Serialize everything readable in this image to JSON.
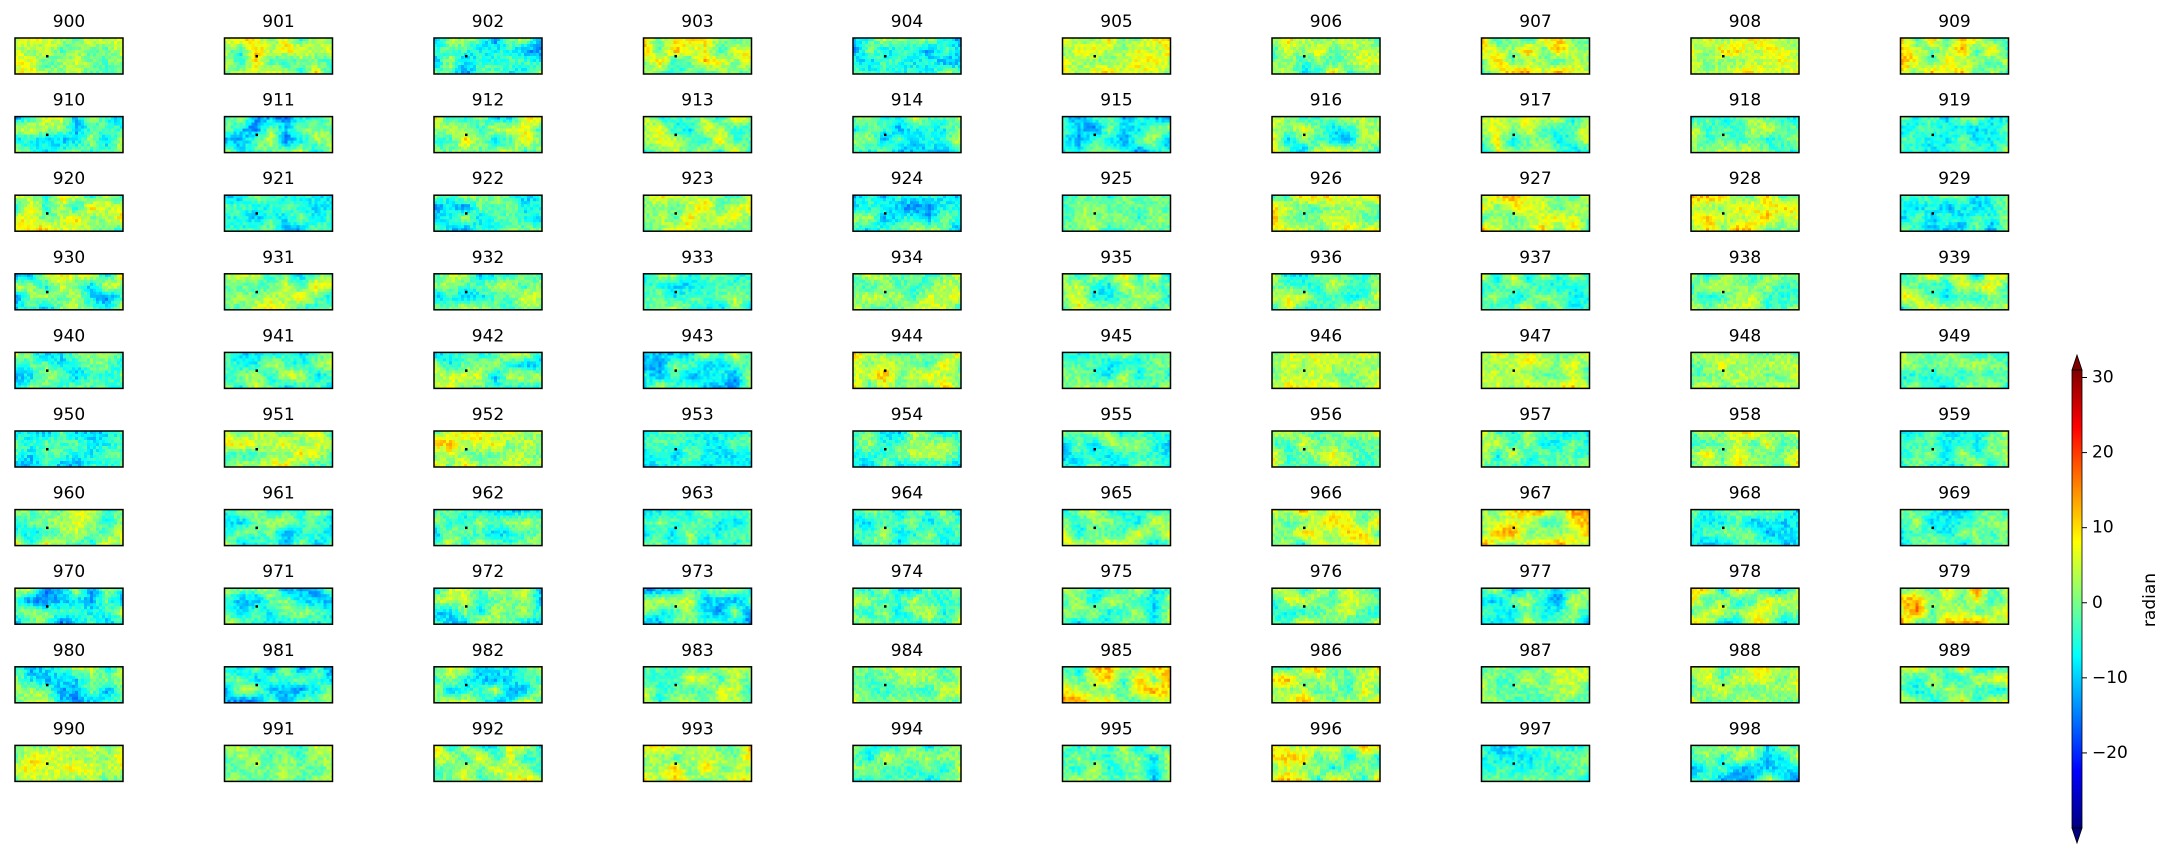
{
  "chart_data": {
    "type": "image-grid",
    "panels": [
      "900",
      "901",
      "902",
      "903",
      "904",
      "905",
      "906",
      "907",
      "908",
      "909",
      "910",
      "911",
      "912",
      "913",
      "914",
      "915",
      "916",
      "917",
      "918",
      "919",
      "920",
      "921",
      "922",
      "923",
      "924",
      "925",
      "926",
      "927",
      "928",
      "929",
      "930",
      "931",
      "932",
      "933",
      "934",
      "935",
      "936",
      "937",
      "938",
      "939",
      "940",
      "941",
      "942",
      "943",
      "944",
      "945",
      "946",
      "947",
      "948",
      "949",
      "950",
      "951",
      "952",
      "953",
      "954",
      "955",
      "956",
      "957",
      "958",
      "959",
      "960",
      "961",
      "962",
      "963",
      "964",
      "965",
      "966",
      "967",
      "968",
      "969",
      "970",
      "971",
      "972",
      "973",
      "974",
      "975",
      "976",
      "977",
      "978",
      "979",
      "980",
      "981",
      "982",
      "983",
      "984",
      "985",
      "986",
      "987",
      "988",
      "989",
      "990",
      "991",
      "992",
      "993",
      "994",
      "995",
      "996",
      "997",
      "998"
    ],
    "colormap": "jet",
    "colorbar": {
      "label": "radian",
      "lim": [
        -30,
        31
      ],
      "ticks": [
        {
          "value": -20,
          "label": "−20"
        },
        {
          "value": -10,
          "label": "−10"
        },
        0,
        10,
        20,
        30
      ],
      "extend": "both"
    }
  }
}
